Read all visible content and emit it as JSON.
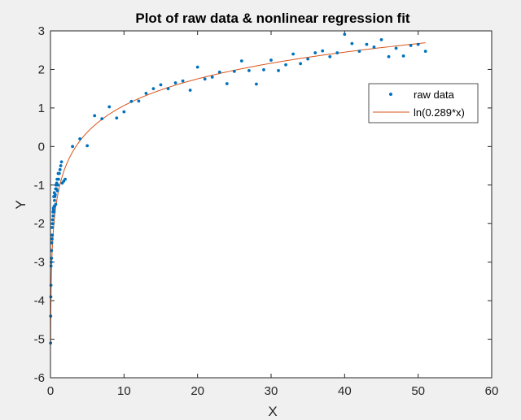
{
  "chart_data": {
    "type": "scatter",
    "title": "Plot of raw data & nonlinear regression fit",
    "xlabel": "X",
    "ylabel": "Y",
    "xlim": [
      0,
      60
    ],
    "ylim": [
      -6,
      3
    ],
    "xticks": [
      0,
      10,
      20,
      30,
      40,
      50,
      60
    ],
    "yticks": [
      -6,
      -5,
      -4,
      -3,
      -2,
      -1,
      0,
      1,
      2,
      3
    ],
    "grid": false,
    "legend_position": "top-right",
    "colors": {
      "raw": "#0072BD",
      "fit": "#D95319",
      "axes_bg": "#ffffff",
      "figure_bg": "#f0f0f0"
    },
    "series": [
      {
        "name": "raw data",
        "kind": "markers",
        "x": [
          0.02,
          0.03,
          0.05,
          0.07,
          0.08,
          0.1,
          0.12,
          0.14,
          0.15,
          0.17,
          0.19,
          0.2,
          0.22,
          0.24,
          0.26,
          0.28,
          0.3,
          0.33,
          0.35,
          0.37,
          0.4,
          0.42,
          0.45,
          0.48,
          0.5,
          0.52,
          0.55,
          0.6,
          0.65,
          0.7,
          0.72,
          0.75,
          0.8,
          0.85,
          0.9,
          0.95,
          1.0,
          1.05,
          1.1,
          1.2,
          1.3,
          1.4,
          1.5,
          1.6,
          1.8,
          2.0,
          3,
          4,
          5,
          6,
          7,
          8,
          9,
          10,
          11,
          12,
          13,
          14,
          15,
          16,
          17,
          18,
          19,
          20,
          21,
          22,
          23,
          24,
          25,
          26,
          27,
          28,
          29,
          30,
          31,
          32,
          33,
          34,
          35,
          36,
          37,
          38,
          39,
          40,
          41,
          42,
          43,
          44,
          45,
          46,
          47,
          48,
          49,
          50,
          51
        ],
        "y": [
          -5.1,
          -4.4,
          -3.9,
          -3.6,
          -3.1,
          -3.0,
          -2.9,
          -2.7,
          -2.9,
          -2.5,
          -2.4,
          -2.3,
          -2.4,
          -2.1,
          -2.3,
          -2.0,
          -1.9,
          -2.0,
          -1.7,
          -1.8,
          -1.6,
          -1.65,
          -1.3,
          -1.7,
          -1.55,
          -1.2,
          -1.4,
          -1.3,
          -1.25,
          -1.1,
          -1.5,
          -1.0,
          -1.1,
          -0.95,
          -0.85,
          -1.15,
          -1.0,
          -0.7,
          -0.85,
          -0.7,
          -0.6,
          -0.5,
          -0.4,
          -0.95,
          -0.9,
          -0.85,
          0.0,
          0.2,
          0.02,
          0.8,
          0.72,
          1.03,
          0.74,
          0.9,
          1.17,
          1.18,
          1.38,
          1.5,
          1.6,
          1.5,
          1.65,
          1.7,
          1.46,
          2.06,
          1.75,
          1.8,
          1.93,
          1.63,
          1.95,
          2.22,
          1.97,
          1.62,
          1.99,
          2.24,
          1.97,
          2.12,
          2.4,
          2.15,
          2.27,
          2.43,
          2.48,
          2.33,
          2.43,
          2.91,
          2.67,
          2.47,
          2.65,
          2.58,
          2.77,
          2.33,
          2.55,
          2.35,
          2.62,
          2.65,
          2.47
        ]
      },
      {
        "name": "ln(0.289*x)",
        "kind": "line",
        "a": 0.289,
        "x_start": 0.021,
        "x_end": 51
      }
    ]
  }
}
